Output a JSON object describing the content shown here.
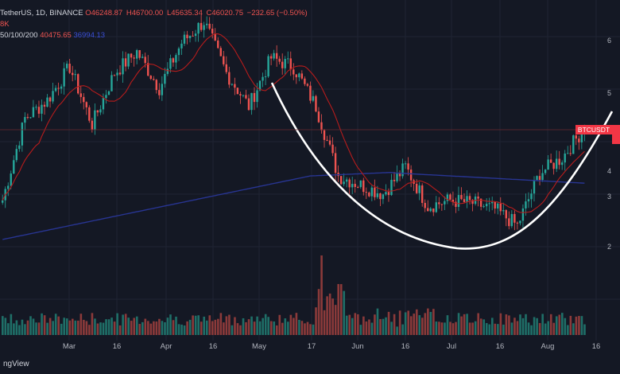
{
  "legend": {
    "symbol": "TetherUS, 1D, BINANCE",
    "open": "O46248.87",
    "high": "H46700.00",
    "low": "L45635.34",
    "close": "C46020.75",
    "change": "−232.65 (−0.50%)",
    "volume": "8K",
    "ma_label": "50/100/200",
    "ma50_value": "40475.65",
    "ma200_value": "36994.13"
  },
  "price_tag": {
    "label": "BTCUSDT"
  },
  "x_axis": {
    "labels": [
      "Mar",
      "16",
      "Apr",
      "16",
      "May",
      "17",
      "Jun",
      "16",
      "Jul",
      "16",
      "Aug",
      "16"
    ]
  },
  "y_axis": {
    "labels": [
      "6",
      "5",
      "4",
      "3",
      "2"
    ]
  },
  "brand": "ngView",
  "colors": {
    "up": "#26a69a",
    "down": "#ef5350",
    "ma50": "#b71c1c",
    "ma200": "#283593",
    "cup": "#ffffff",
    "up_vol": "#1f6f68",
    "down_vol": "#8b3a3a"
  },
  "chart_data": {
    "type": "candlestick",
    "series_keypoints": [
      {
        "t": 0,
        "p": 34000
      },
      {
        "t": 8,
        "p": 47500
      },
      {
        "t": 16,
        "p": 50500
      },
      {
        "t": 24,
        "p": 56000
      },
      {
        "t": 32,
        "p": 46500
      },
      {
        "t": 40,
        "p": 55000
      },
      {
        "t": 48,
        "p": 58500
      },
      {
        "t": 56,
        "p": 52500
      },
      {
        "t": 64,
        "p": 60000
      },
      {
        "t": 72,
        "p": 63500
      },
      {
        "t": 80,
        "p": 55000
      },
      {
        "t": 88,
        "p": 49500
      },
      {
        "t": 96,
        "p": 57500
      },
      {
        "t": 104,
        "p": 56000
      },
      {
        "t": 112,
        "p": 49500
      },
      {
        "t": 120,
        "p": 38000
      },
      {
        "t": 128,
        "p": 36500
      },
      {
        "t": 136,
        "p": 35000
      },
      {
        "t": 144,
        "p": 39500
      },
      {
        "t": 152,
        "p": 33000
      },
      {
        "t": 160,
        "p": 34000
      },
      {
        "t": 168,
        "p": 33500
      },
      {
        "t": 176,
        "p": 32500
      },
      {
        "t": 184,
        "p": 29800
      },
      {
        "t": 192,
        "p": 38500
      },
      {
        "t": 200,
        "p": 41000
      },
      {
        "t": 208,
        "p": 46000
      }
    ]
  }
}
